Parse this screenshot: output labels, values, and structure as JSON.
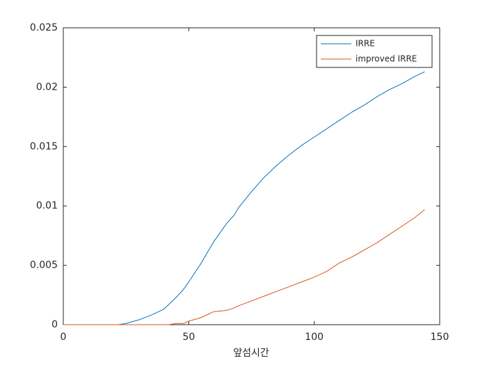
{
  "chart_data": {
    "type": "line",
    "x_label": "앞섬시간",
    "x": [
      0,
      5,
      10,
      15,
      20,
      22,
      25,
      30,
      35,
      40,
      42,
      45,
      48,
      50,
      55,
      58,
      60,
      65,
      68,
      70,
      75,
      80,
      85,
      90,
      95,
      100,
      105,
      110,
      115,
      120,
      125,
      130,
      135,
      140,
      144
    ],
    "series": [
      {
        "name": "IRRE",
        "color": "#0072BD",
        "values": [
          0,
          0,
          0,
          0,
          0,
          0,
          0.0001,
          0.0004,
          0.0008,
          0.0013,
          0.0017,
          0.0023,
          0.003,
          0.0036,
          0.0052,
          0.0063,
          0.007,
          0.0085,
          0.0092,
          0.0099,
          0.0112,
          0.0124,
          0.0134,
          0.0143,
          0.0151,
          0.0158,
          0.0165,
          0.0172,
          0.0179,
          0.0185,
          0.0192,
          0.0198,
          0.0203,
          0.0209,
          0.0213
        ]
      },
      {
        "name": "improved IRRE",
        "color": "#D95319",
        "values": [
          0,
          0,
          0,
          0,
          0,
          0,
          0,
          0,
          0,
          0,
          0,
          0.0001,
          0.0001,
          0.0003,
          0.0006,
          0.0009,
          0.0011,
          0.0012,
          0.0014,
          0.0016,
          0.002,
          0.0024,
          0.0028,
          0.0032,
          0.0036,
          0.004,
          0.0045,
          0.0052,
          0.0057,
          0.0063,
          0.0069,
          0.0076,
          0.0083,
          0.009,
          0.0097
        ]
      }
    ],
    "xlim": [
      0,
      150
    ],
    "xticks": [
      0,
      50,
      100,
      150
    ],
    "ylim": [
      0,
      0.025
    ],
    "yticks": [
      0,
      0.005,
      0.01,
      0.015,
      0.02,
      0.025
    ],
    "legend": "northeast"
  }
}
